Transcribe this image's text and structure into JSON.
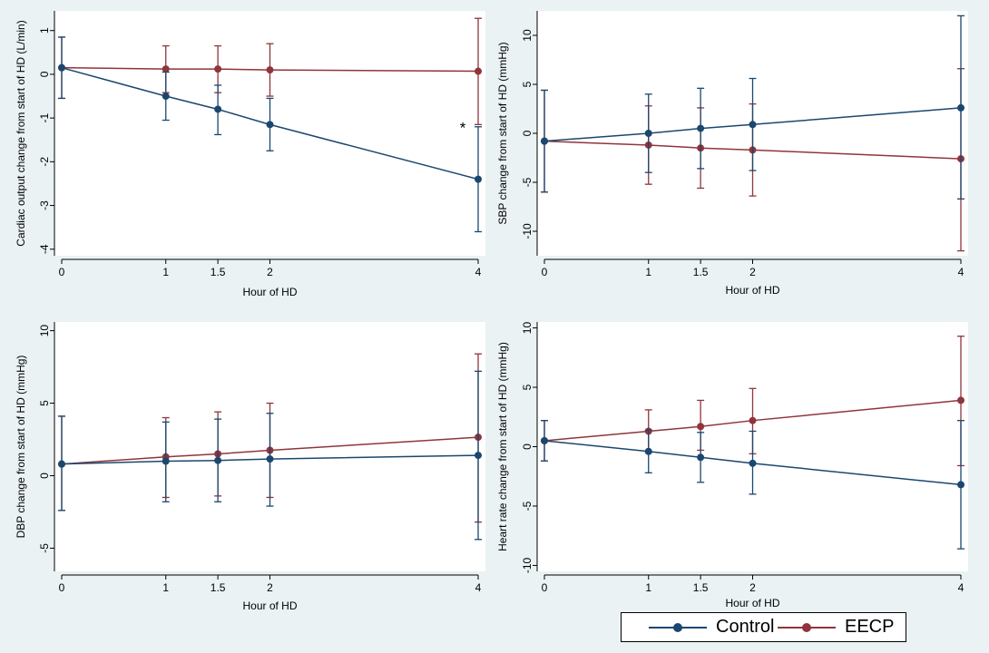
{
  "colors": {
    "control": "#1a476f",
    "eecp": "#90353b",
    "plot_bg": "#ffffff",
    "page_bg": "#eaf2f3"
  },
  "legend": {
    "items": [
      {
        "label": "Control",
        "color": "#1a476f"
      },
      {
        "label": "EECP",
        "color": "#90353b"
      }
    ],
    "placement": "bottom-right"
  },
  "chart_data": [
    {
      "type": "line",
      "xlabel": "Hour of HD",
      "ylabel": "Cardiac output change from start of HD (L/min)",
      "x": [
        0,
        1,
        1.5,
        2,
        4
      ],
      "xticks": [
        "0",
        "1",
        "1.5",
        "2",
        "4"
      ],
      "yticks": [
        1,
        0,
        -1,
        -2,
        -3,
        -4
      ],
      "ylim": [
        -4.15,
        1.45
      ],
      "xlim": [
        0,
        4
      ],
      "grid": false,
      "annotation": {
        "text": "*",
        "x": 4,
        "y": -1.15
      },
      "series": [
        {
          "name": "Control",
          "values": [
            0.15,
            -0.5,
            -0.8,
            -1.15,
            -2.4
          ],
          "lower": [
            -0.55,
            -1.05,
            -1.38,
            -1.75,
            -3.6
          ],
          "upper": [
            0.85,
            0.05,
            -0.25,
            -0.55,
            -1.2
          ]
        },
        {
          "name": "EECP",
          "values": [
            0.15,
            0.12,
            0.12,
            0.1,
            0.07
          ],
          "lower": [
            -0.55,
            -0.42,
            -0.42,
            -0.5,
            -1.15
          ],
          "upper": [
            0.85,
            0.65,
            0.65,
            0.7,
            1.28
          ]
        }
      ]
    },
    {
      "type": "line",
      "xlabel": "Hour of HD",
      "ylabel": "SBP change from start of HD (mmHg)",
      "x": [
        0,
        1,
        1.5,
        2,
        4
      ],
      "xticks": [
        "0",
        "1",
        "1.5",
        "2",
        "4"
      ],
      "yticks": [
        10,
        5,
        0,
        -5,
        -10
      ],
      "ylim": [
        -12.5,
        12.5
      ],
      "xlim": [
        0,
        4
      ],
      "grid": false,
      "series": [
        {
          "name": "Control",
          "values": [
            -0.8,
            0.0,
            0.5,
            0.9,
            2.6
          ],
          "lower": [
            -6.0,
            -4.0,
            -3.6,
            -3.8,
            -6.7
          ],
          "upper": [
            4.4,
            4.0,
            4.6,
            5.6,
            12.0
          ]
        },
        {
          "name": "EECP",
          "values": [
            -0.8,
            -1.2,
            -1.5,
            -1.7,
            -2.6
          ],
          "lower": [
            -6.0,
            -5.2,
            -5.6,
            -6.4,
            -12.0
          ],
          "upper": [
            4.4,
            2.8,
            2.6,
            3.0,
            6.6
          ]
        }
      ]
    },
    {
      "type": "line",
      "xlabel": "Hour of HD",
      "ylabel": "DBP change from start of HD (mmHg)",
      "x": [
        0,
        1,
        1.5,
        2,
        4
      ],
      "xticks": [
        "0",
        "1",
        "1.5",
        "2",
        "4"
      ],
      "yticks": [
        10,
        5,
        0,
        -5
      ],
      "ylim": [
        -6.6,
        10.6
      ],
      "xlim": [
        0,
        4
      ],
      "grid": false,
      "series": [
        {
          "name": "Control",
          "values": [
            0.8,
            1.0,
            1.05,
            1.15,
            1.4
          ],
          "lower": [
            -2.4,
            -1.8,
            -1.8,
            -2.1,
            -4.4
          ],
          "upper": [
            4.1,
            3.7,
            3.9,
            4.3,
            7.2
          ]
        },
        {
          "name": "EECP",
          "values": [
            0.8,
            1.3,
            1.5,
            1.75,
            2.65
          ],
          "lower": [
            -2.4,
            -1.5,
            -1.4,
            -1.5,
            -3.2
          ],
          "upper": [
            4.1,
            4.0,
            4.4,
            5.0,
            8.4
          ]
        }
      ]
    },
    {
      "type": "line",
      "xlabel": "Hour of HD",
      "ylabel": "Heart rate  change from start of HD (mmHg)",
      "x": [
        0,
        1,
        1.5,
        2,
        4
      ],
      "xticks": [
        "0",
        "1",
        "1.5",
        "2",
        "4"
      ],
      "yticks": [
        10,
        5,
        0,
        -5,
        -10
      ],
      "ylim": [
        -10.5,
        10.5
      ],
      "xlim": [
        0,
        4
      ],
      "grid": false,
      "series": [
        {
          "name": "Control",
          "values": [
            0.5,
            -0.4,
            -0.9,
            -1.4,
            -3.2
          ],
          "lower": [
            -1.2,
            -2.2,
            -3.0,
            -4.0,
            -8.6
          ],
          "upper": [
            2.2,
            1.4,
            1.2,
            1.3,
            2.2
          ]
        },
        {
          "name": "EECP",
          "values": [
            0.5,
            1.3,
            1.7,
            2.2,
            3.9
          ],
          "lower": [
            -1.2,
            -0.5,
            -0.3,
            -0.6,
            -1.6
          ],
          "upper": [
            2.2,
            3.1,
            3.9,
            4.9,
            9.3
          ]
        }
      ]
    }
  ]
}
